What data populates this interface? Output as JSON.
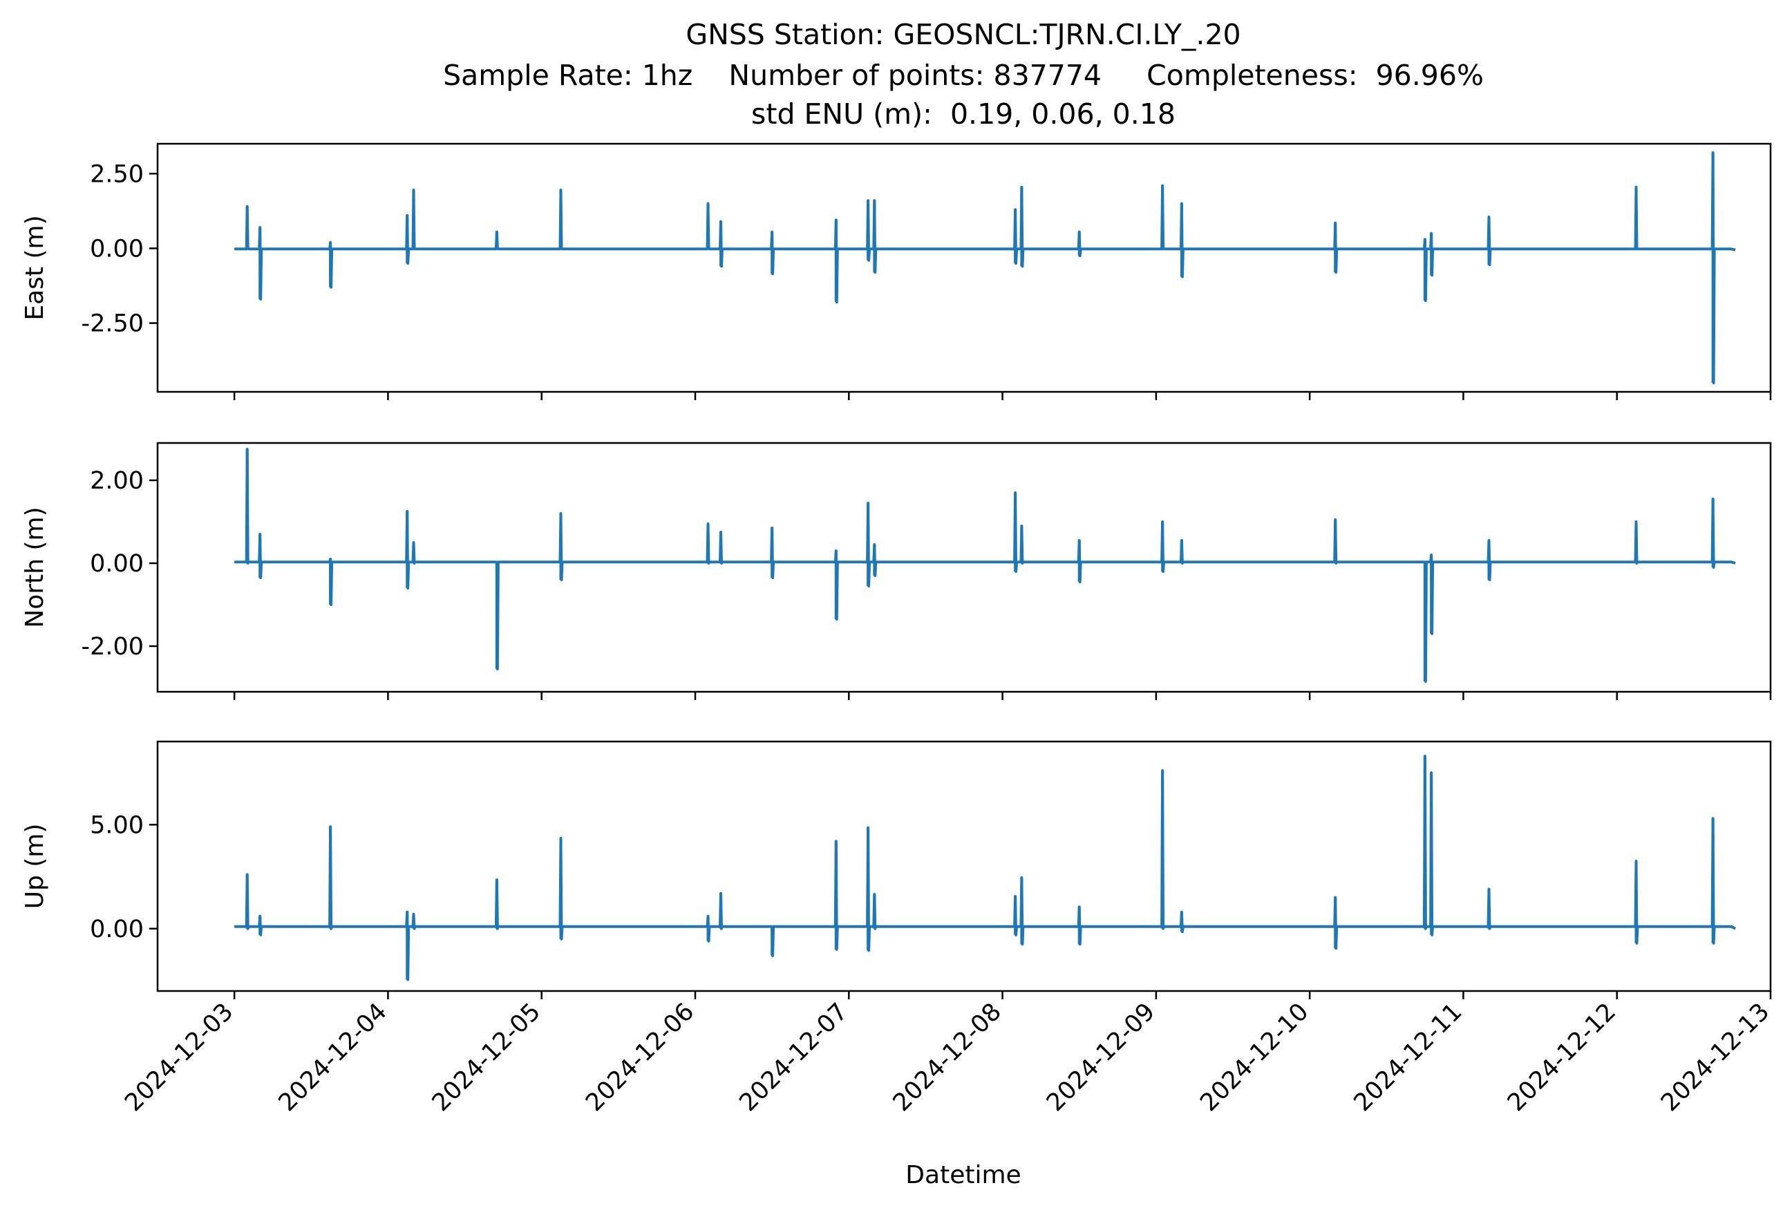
{
  "figure": {
    "title_lines": [
      "GNSS Station: GEOSNCL:TJRN.CI.LY_.20",
      "Sample Rate: 1hz    Number of points: 837774     Completeness:  96.96%",
      "std ENU (m):  0.19, 0.06, 0.18"
    ],
    "xlabel": "Datetime",
    "line_color": "#1f77b4"
  },
  "chart_data": [
    {
      "type": "line",
      "ylabel": "East (m)",
      "x_ticks": [
        "2024-12-03",
        "2024-12-04",
        "2024-12-05",
        "2024-12-06",
        "2024-12-07",
        "2024-12-08",
        "2024-12-09",
        "2024-12-10",
        "2024-12-11",
        "2024-12-12",
        "2024-12-13"
      ],
      "x_tick_labels_visible": false,
      "xlim": [
        "2024-12-02T12:00",
        "2024-12-13T00:00"
      ],
      "y_ticks": [
        -2.5,
        0.0,
        2.5
      ],
      "y_tick_labels": [
        "-2.50",
        "0.00",
        "2.50"
      ],
      "ylim": [
        -4.8,
        3.5
      ],
      "grid": false,
      "baseline": -0.02,
      "spikes": [
        [
          "2024-12-03T02:00",
          1.4,
          0.0
        ],
        [
          "2024-12-03T04:00",
          0.7,
          -1.7
        ],
        [
          "2024-12-03T15:00",
          0.2,
          -1.3
        ],
        [
          "2024-12-04T03:00",
          1.1,
          -0.5
        ],
        [
          "2024-12-04T04:00",
          1.95,
          0.0
        ],
        [
          "2024-12-04T17:00",
          0.55,
          0.0
        ],
        [
          "2024-12-05T03:00",
          1.95,
          0.0
        ],
        [
          "2024-12-06T02:00",
          1.5,
          0.0
        ],
        [
          "2024-12-06T04:00",
          0.9,
          -0.6
        ],
        [
          "2024-12-06T12:00",
          0.55,
          -0.85
        ],
        [
          "2024-12-06T22:00",
          0.95,
          -1.8
        ],
        [
          "2024-12-07T03:00",
          1.6,
          -0.4
        ],
        [
          "2024-12-07T04:00",
          1.6,
          -0.8
        ],
        [
          "2024-12-08T02:00",
          1.3,
          -0.5
        ],
        [
          "2024-12-08T03:00",
          2.05,
          -0.6
        ],
        [
          "2024-12-08T12:00",
          0.55,
          -0.25
        ],
        [
          "2024-12-09T01:00",
          2.1,
          0.0
        ],
        [
          "2024-12-09T04:00",
          1.5,
          -0.95
        ],
        [
          "2024-12-10T04:00",
          0.85,
          -0.8
        ],
        [
          "2024-12-10T18:00",
          0.3,
          -1.75
        ],
        [
          "2024-12-10T19:00",
          0.5,
          -0.9
        ],
        [
          "2024-12-11T04:00",
          1.05,
          -0.55
        ],
        [
          "2024-12-12T03:00",
          2.05,
          0.0
        ],
        [
          "2024-12-12T15:00",
          3.2,
          -4.5
        ]
      ],
      "end": {
        "x": "2024-12-12T18:30",
        "y": -0.05
      }
    },
    {
      "type": "line",
      "ylabel": "North (m)",
      "x_ticks": [
        "2024-12-03",
        "2024-12-04",
        "2024-12-05",
        "2024-12-06",
        "2024-12-07",
        "2024-12-08",
        "2024-12-09",
        "2024-12-10",
        "2024-12-11",
        "2024-12-12",
        "2024-12-13"
      ],
      "x_tick_labels_visible": false,
      "xlim": [
        "2024-12-02T12:00",
        "2024-12-13T00:00"
      ],
      "y_ticks": [
        -2.0,
        0.0,
        2.0
      ],
      "y_tick_labels": [
        "-2.00",
        "0.00",
        "2.00"
      ],
      "ylim": [
        -3.1,
        2.9
      ],
      "grid": false,
      "baseline": 0.03,
      "spikes": [
        [
          "2024-12-03T02:00",
          2.75,
          0.0
        ],
        [
          "2024-12-03T04:00",
          0.7,
          -0.35
        ],
        [
          "2024-12-03T15:00",
          0.1,
          -1.0
        ],
        [
          "2024-12-04T03:00",
          1.25,
          -0.6
        ],
        [
          "2024-12-04T04:00",
          0.5,
          0.0
        ],
        [
          "2024-12-04T17:00",
          0.0,
          -2.55
        ],
        [
          "2024-12-05T03:00",
          1.2,
          -0.4
        ],
        [
          "2024-12-06T02:00",
          0.95,
          0.0
        ],
        [
          "2024-12-06T04:00",
          0.75,
          0.0
        ],
        [
          "2024-12-06T12:00",
          0.85,
          -0.35
        ],
        [
          "2024-12-06T22:00",
          0.3,
          -1.35
        ],
        [
          "2024-12-07T03:00",
          1.45,
          -0.55
        ],
        [
          "2024-12-07T04:00",
          0.45,
          -0.3
        ],
        [
          "2024-12-08T02:00",
          1.7,
          -0.2
        ],
        [
          "2024-12-08T03:00",
          0.9,
          0.0
        ],
        [
          "2024-12-08T12:00",
          0.55,
          -0.45
        ],
        [
          "2024-12-09T01:00",
          1.0,
          -0.2
        ],
        [
          "2024-12-09T04:00",
          0.55,
          0.0
        ],
        [
          "2024-12-10T04:00",
          1.05,
          0.0
        ],
        [
          "2024-12-10T18:00",
          0.0,
          -2.85
        ],
        [
          "2024-12-10T19:00",
          0.2,
          -1.7
        ],
        [
          "2024-12-11T04:00",
          0.55,
          -0.4
        ],
        [
          "2024-12-12T03:00",
          1.0,
          0.0
        ],
        [
          "2024-12-12T15:00",
          1.55,
          -0.1
        ]
      ],
      "end": {
        "x": "2024-12-12T18:30",
        "y": 0.0
      }
    },
    {
      "type": "line",
      "ylabel": "Up (m)",
      "x_ticks": [
        "2024-12-03",
        "2024-12-04",
        "2024-12-05",
        "2024-12-06",
        "2024-12-07",
        "2024-12-08",
        "2024-12-09",
        "2024-12-10",
        "2024-12-11",
        "2024-12-12",
        "2024-12-13"
      ],
      "x_tick_labels": [
        "2024-12-03",
        "2024-12-04",
        "2024-12-05",
        "2024-12-06",
        "2024-12-07",
        "2024-12-08",
        "2024-12-09",
        "2024-12-10",
        "2024-12-11",
        "2024-12-12",
        "2024-12-13"
      ],
      "x_tick_labels_visible": true,
      "xlim": [
        "2024-12-02T12:00",
        "2024-12-13T00:00"
      ],
      "y_ticks": [
        0.0,
        5.0
      ],
      "y_tick_labels": [
        "0.00",
        "5.00"
      ],
      "ylim": [
        -3.0,
        9.0
      ],
      "grid": false,
      "baseline": 0.1,
      "spikes": [
        [
          "2024-12-03T02:00",
          2.6,
          0.0
        ],
        [
          "2024-12-03T04:00",
          0.6,
          -0.3
        ],
        [
          "2024-12-03T15:00",
          4.9,
          0.0
        ],
        [
          "2024-12-04T03:00",
          0.8,
          -2.45
        ],
        [
          "2024-12-04T04:00",
          0.7,
          0.0
        ],
        [
          "2024-12-04T17:00",
          2.35,
          0.0
        ],
        [
          "2024-12-05T03:00",
          4.35,
          -0.5
        ],
        [
          "2024-12-06T02:00",
          0.6,
          -0.6
        ],
        [
          "2024-12-06T04:00",
          1.7,
          0.0
        ],
        [
          "2024-12-06T12:00",
          0.0,
          -1.3
        ],
        [
          "2024-12-06T22:00",
          4.2,
          -1.0
        ],
        [
          "2024-12-07T03:00",
          4.85,
          -1.05
        ],
        [
          "2024-12-07T04:00",
          1.65,
          0.0
        ],
        [
          "2024-12-08T02:00",
          1.55,
          -0.3
        ],
        [
          "2024-12-08T03:00",
          2.45,
          -0.75
        ],
        [
          "2024-12-08T12:00",
          1.05,
          -0.75
        ],
        [
          "2024-12-09T01:00",
          7.6,
          0.0
        ],
        [
          "2024-12-09T04:00",
          0.8,
          -0.15
        ],
        [
          "2024-12-10T04:00",
          1.5,
          -0.95
        ],
        [
          "2024-12-10T18:00",
          8.3,
          0.0
        ],
        [
          "2024-12-10T19:00",
          7.5,
          -0.3
        ],
        [
          "2024-12-11T04:00",
          1.9,
          0.0
        ],
        [
          "2024-12-12T03:00",
          3.25,
          -0.7
        ],
        [
          "2024-12-12T15:00",
          5.3,
          -0.7
        ]
      ],
      "end": {
        "x": "2024-12-12T18:30",
        "y": 0.0
      }
    }
  ]
}
